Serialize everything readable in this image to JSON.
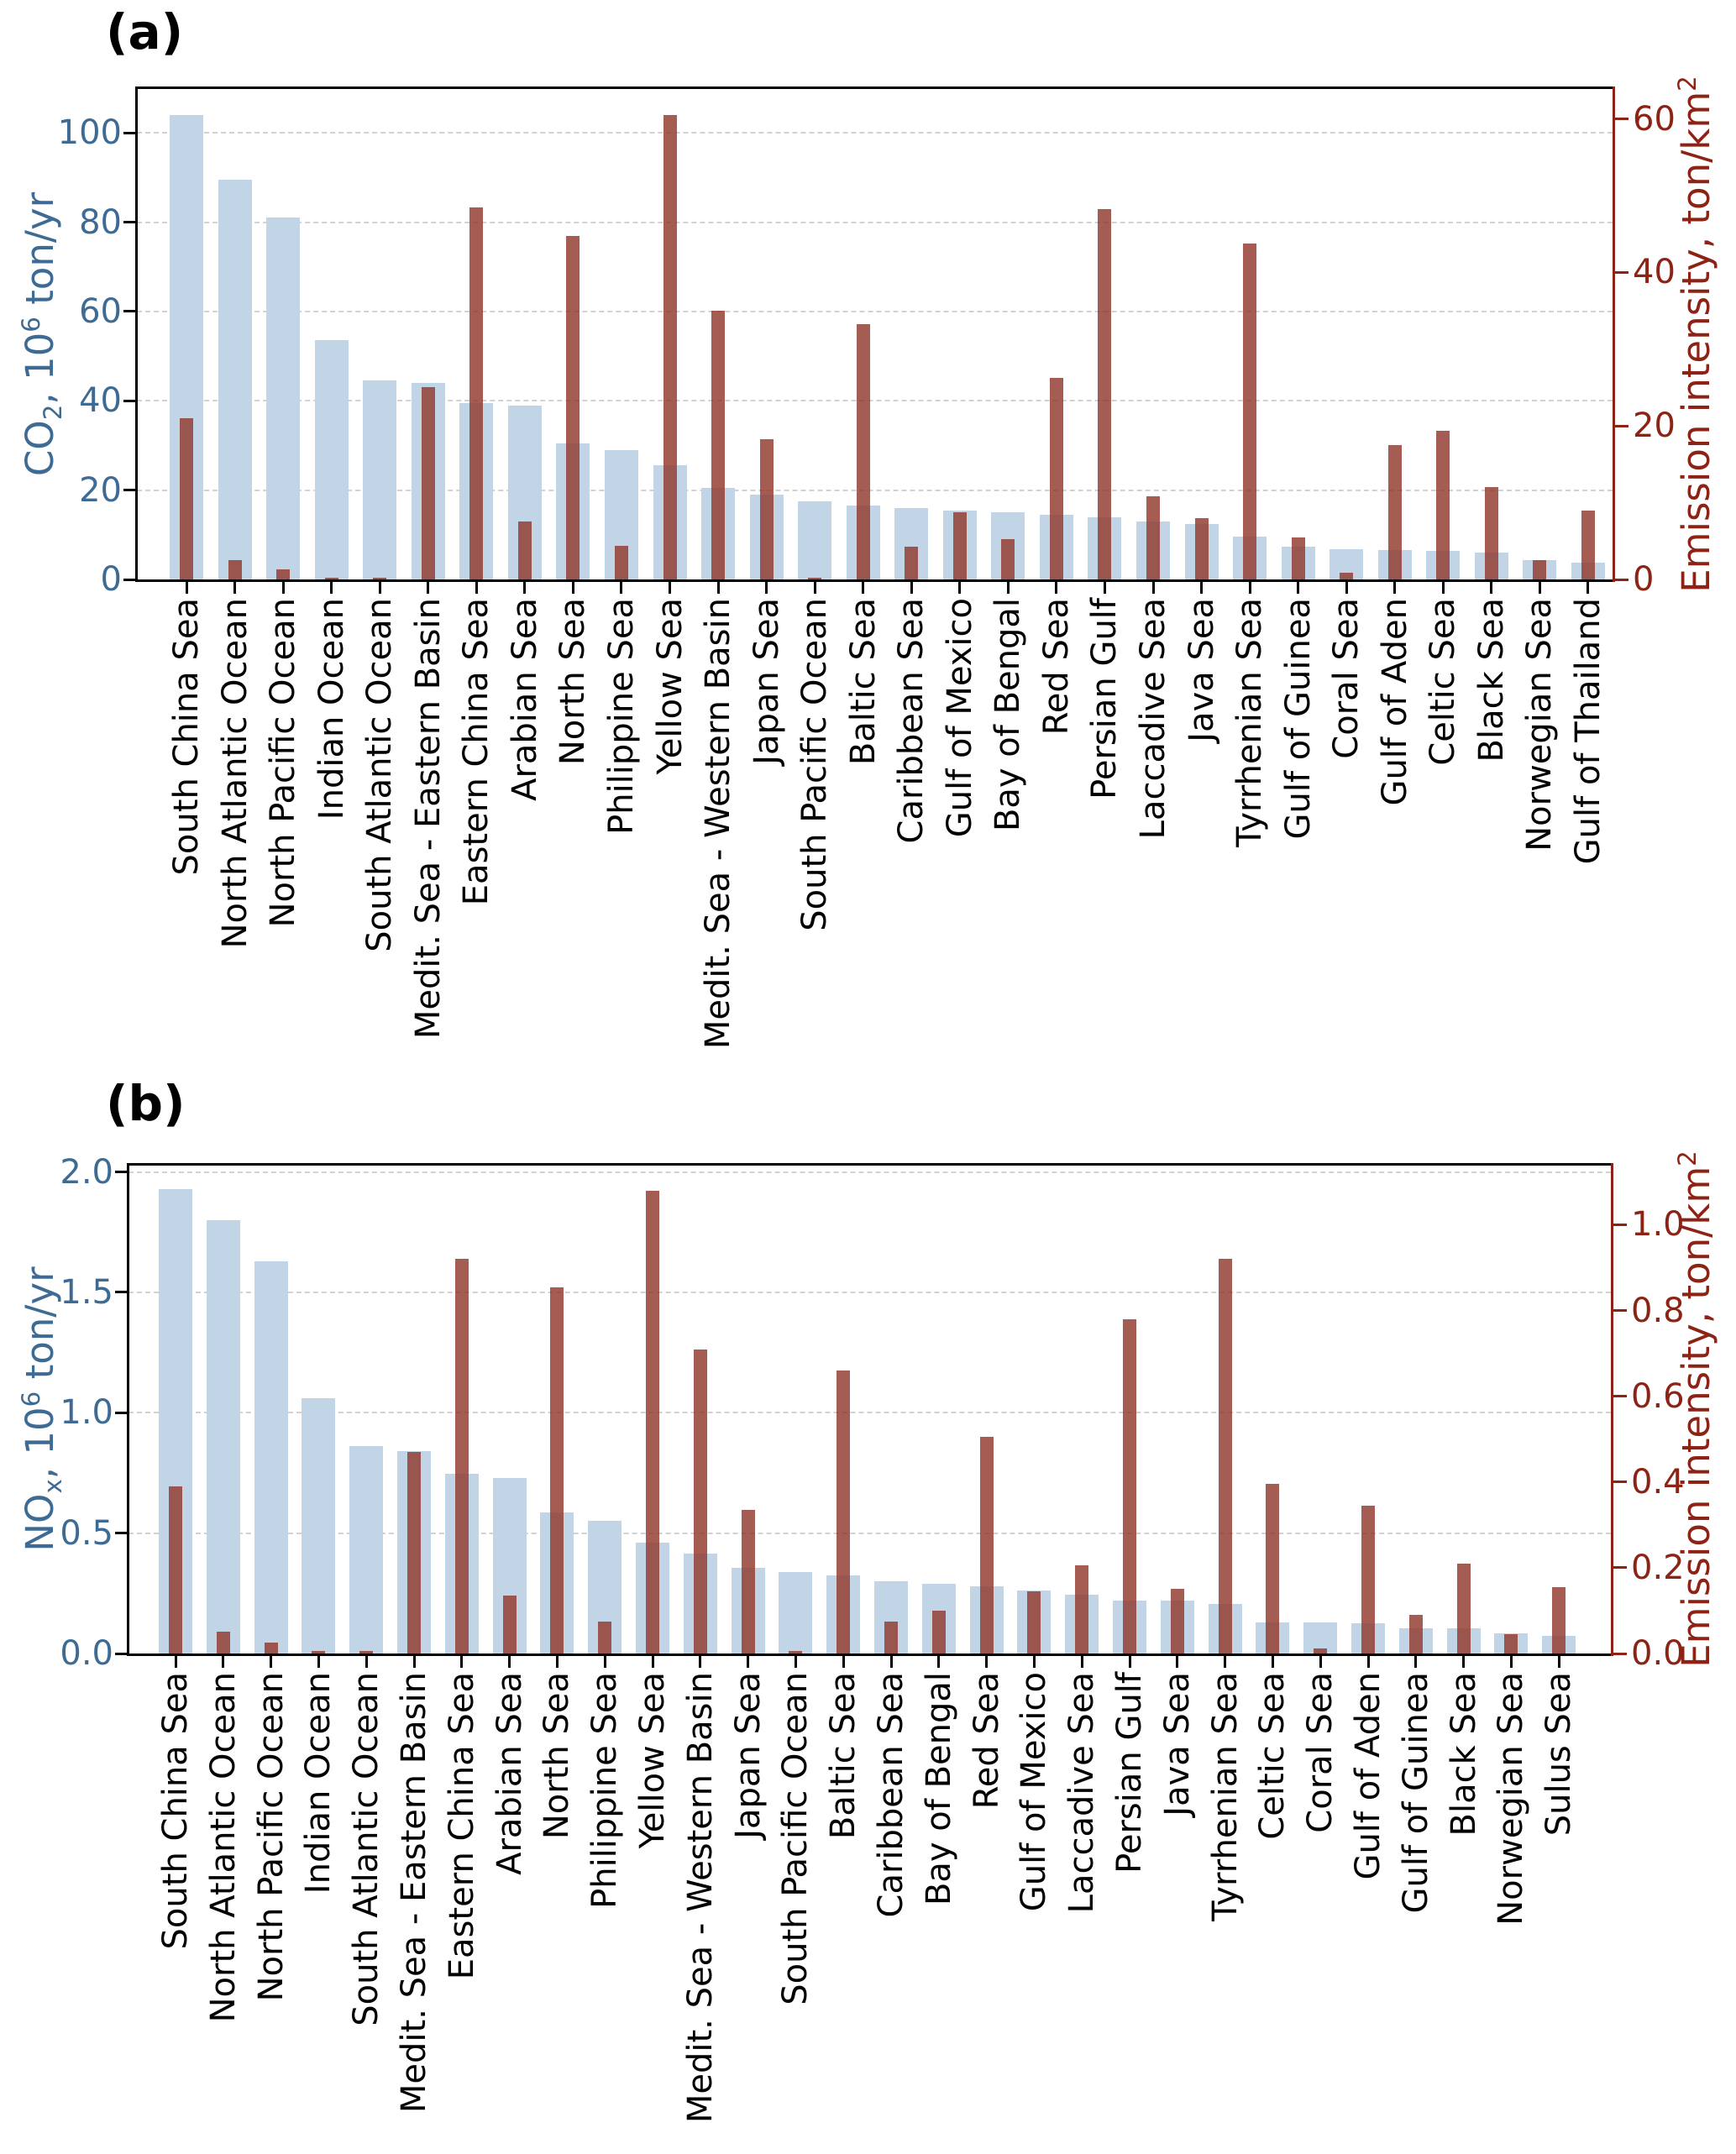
{
  "figure": {
    "background": "#ffffff",
    "panels": [
      {
        "label": "(a)"
      },
      {
        "label": "(b)"
      }
    ]
  },
  "colors": {
    "blue_bar": "#c1d5e7",
    "red_bar": "#8f3428",
    "red_bar_opacity": 0.8,
    "left_axis_text": "#3e6b94",
    "right_axis_text": "#8c2315",
    "right_spine": "#8c2315",
    "spine": "#000000",
    "grid": "#d2d2d2",
    "xlabel_text": "#000000"
  },
  "chart_data": [
    {
      "type": "bar",
      "panel_label": "(a)",
      "ylabel_left_parts": [
        {
          "t": "CO"
        },
        {
          "t": "2",
          "sub": true
        },
        {
          "t": ", 10"
        },
        {
          "t": "6",
          "sup": true
        },
        {
          "t": " ton/yr"
        }
      ],
      "ylabel_right_parts": [
        {
          "t": "Emission intensity, ton/km"
        },
        {
          "t": "2",
          "sup": true
        }
      ],
      "y_left": {
        "min": 0,
        "max": 110,
        "ticks": [
          0,
          20,
          40,
          60,
          80,
          100
        ],
        "tick_labels": [
          "0",
          "20",
          "40",
          "60",
          "80",
          "100"
        ]
      },
      "y_right": {
        "min": 0,
        "max": 64,
        "ticks": [
          0,
          20,
          40,
          60
        ],
        "tick_labels": [
          "0",
          "20",
          "40",
          "60"
        ]
      },
      "grid_on": true,
      "legend": null,
      "categories": [
        "South China Sea",
        "North Atlantic Ocean",
        "North Pacific Ocean",
        "Indian Ocean",
        "South Atlantic Ocean",
        "Medit. Sea - Eastern Basin",
        "Eastern China Sea",
        "Arabian Sea",
        "North Sea",
        "Philippine Sea",
        "Yellow Sea",
        "Medit. Sea - Western Basin",
        "Japan Sea",
        "South Pacific Ocean",
        "Baltic Sea",
        "Caribbean Sea",
        "Gulf of Mexico",
        "Bay of Bengal",
        "Red Sea",
        "Persian Gulf",
        "Laccadive Sea",
        "Java Sea",
        "Tyrrhenian Sea",
        "Gulf of Guinea",
        "Coral Sea",
        "Gulf of Aden",
        "Celtic Sea",
        "Black Sea",
        "Norwegian Sea",
        "Gulf of Thailand"
      ],
      "series": [
        {
          "name": "CO2 emissions, 10^6 ton/yr",
          "axis": "left",
          "values": [
            104,
            89.5,
            81,
            53.5,
            44.5,
            44,
            39.5,
            39,
            30.5,
            29,
            25.5,
            20.5,
            19,
            17.5,
            16.5,
            16,
            15.5,
            15,
            14.5,
            14,
            13,
            12.5,
            9.5,
            7.3,
            6.8,
            6.5,
            6.4,
            6.1,
            4.4,
            3.8
          ]
        },
        {
          "name": "Emission intensity, ton/km2",
          "axis": "right",
          "values": [
            21,
            2.5,
            1.3,
            0.2,
            0.2,
            25,
            48.5,
            7.5,
            44.8,
            4.4,
            60.5,
            35,
            18.3,
            0.2,
            33.3,
            4.3,
            8.7,
            5.3,
            26.3,
            48.2,
            10.8,
            8.0,
            43.8,
            5.5,
            0.9,
            17.5,
            19.4,
            12.0,
            2.5,
            9.0
          ]
        }
      ]
    },
    {
      "type": "bar",
      "panel_label": "(b)",
      "ylabel_left_parts": [
        {
          "t": "NO"
        },
        {
          "t": "x",
          "sub": true
        },
        {
          "t": ", 10"
        },
        {
          "t": "6",
          "sup": true
        },
        {
          "t": " ton/yr"
        }
      ],
      "ylabel_right_parts": [
        {
          "t": "Emission intensity, ton/km"
        },
        {
          "t": "2",
          "sup": true
        }
      ],
      "y_left": {
        "min": 0,
        "max": 2.03,
        "ticks": [
          0,
          0.5,
          1.0,
          1.5,
          2.0
        ],
        "tick_labels": [
          "0.0",
          "0.5",
          "1.0",
          "1.5",
          "2.0"
        ]
      },
      "y_right": {
        "min": 0,
        "max": 1.14,
        "ticks": [
          0,
          0.2,
          0.4,
          0.6,
          0.8,
          1.0
        ],
        "tick_labels": [
          "0.0",
          "0.2",
          "0.4",
          "0.6",
          "0.8",
          "1.0"
        ]
      },
      "grid_on": true,
      "legend": null,
      "categories": [
        "South China Sea",
        "North Atlantic Ocean",
        "North Pacific Ocean",
        "Indian Ocean",
        "South Atlantic Ocean",
        "Medit. Sea - Eastern Basin",
        "Eastern China Sea",
        "Arabian Sea",
        "North Sea",
        "Philippine Sea",
        "Yellow Sea",
        "Medit. Sea - Western Basin",
        "Japan Sea",
        "South Pacific Ocean",
        "Baltic Sea",
        "Caribbean Sea",
        "Bay of Bengal",
        "Red Sea",
        "Gulf of Mexico",
        "Laccadive Sea",
        "Persian Gulf",
        "Java Sea",
        "Tyrrhenian Sea",
        "Celtic Sea",
        "Coral Sea",
        "Gulf of Aden",
        "Gulf of Guinea",
        "Black Sea",
        "Norwegian Sea",
        "Sulus Sea"
      ],
      "series": [
        {
          "name": "NOx emissions, 10^6 ton/yr",
          "axis": "left",
          "values": [
            1.93,
            1.8,
            1.63,
            1.06,
            0.86,
            0.84,
            0.745,
            0.73,
            0.585,
            0.55,
            0.46,
            0.415,
            0.355,
            0.34,
            0.325,
            0.3,
            0.29,
            0.28,
            0.26,
            0.245,
            0.22,
            0.22,
            0.205,
            0.13,
            0.13,
            0.125,
            0.105,
            0.105,
            0.085,
            0.072
          ]
        },
        {
          "name": "Emission intensity, ton/km2",
          "axis": "right",
          "values": [
            0.39,
            0.05,
            0.025,
            0.005,
            0.005,
            0.47,
            0.92,
            0.135,
            0.855,
            0.075,
            1.08,
            0.71,
            0.335,
            0.005,
            0.66,
            0.075,
            0.1,
            0.505,
            0.145,
            0.205,
            0.78,
            0.15,
            0.92,
            0.395,
            0.012,
            0.345,
            0.09,
            0.21,
            0.046,
            0.155
          ]
        }
      ]
    }
  ]
}
